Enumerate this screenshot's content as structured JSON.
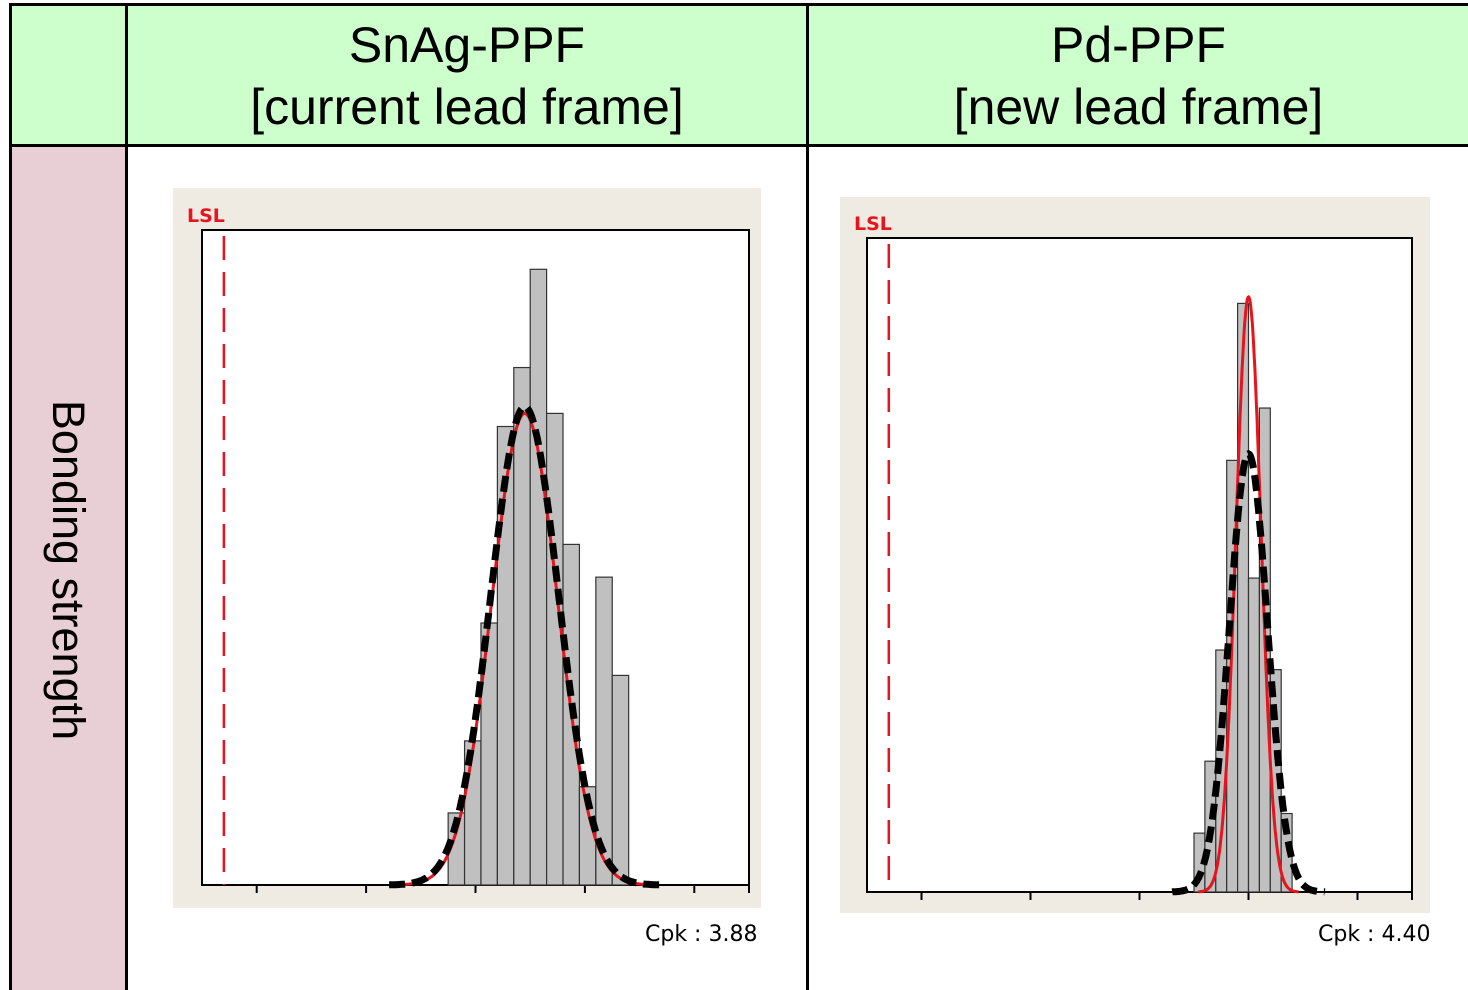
{
  "header": {
    "col1_title_line1": "SnAg-PPF",
    "col1_title_line2": "[current lead frame]",
    "col2_title_line1": "Pd-PPF",
    "col2_title_line2": "[new lead frame]"
  },
  "row_label": "Bonding strength",
  "colors": {
    "header_bg": "#ccffcc",
    "row_header_bg": "#e8cfd6",
    "plot_frame_bg": "#efebe3",
    "bar_fill": "#c0c0c0",
    "lsl_line": "#e8131b",
    "fit_red": "#e8131b",
    "fit_black": "#000000"
  },
  "chart_data": [
    {
      "type": "bar",
      "panel": "SnAg-PPF [current lead frame]",
      "title": "",
      "xlabel": "",
      "ylabel": "",
      "lsl_label": "LSL",
      "lsl_x": 0.04,
      "xlim": [
        0,
        1.0
      ],
      "ylim": [
        0,
        100
      ],
      "bins": [
        {
          "x0": 0.45,
          "x1": 0.48,
          "count": 11
        },
        {
          "x0": 0.48,
          "x1": 0.51,
          "count": 22
        },
        {
          "x0": 0.51,
          "x1": 0.54,
          "count": 40
        },
        {
          "x0": 0.54,
          "x1": 0.57,
          "count": 70
        },
        {
          "x0": 0.57,
          "x1": 0.6,
          "count": 79
        },
        {
          "x0": 0.6,
          "x1": 0.63,
          "count": 94
        },
        {
          "x0": 0.63,
          "x1": 0.66,
          "count": 72
        },
        {
          "x0": 0.66,
          "x1": 0.69,
          "count": 52
        },
        {
          "x0": 0.69,
          "x1": 0.72,
          "count": 15
        },
        {
          "x0": 0.72,
          "x1": 0.75,
          "count": 47
        },
        {
          "x0": 0.75,
          "x1": 0.78,
          "count": 32
        }
      ],
      "fit_curves": [
        {
          "color": "red",
          "style": "solid",
          "mean": 0.59,
          "sd": 0.06,
          "peak": 72
        },
        {
          "color": "black",
          "style": "dashed",
          "mean": 0.59,
          "sd": 0.062,
          "peak": 73
        }
      ],
      "cpk_text": "Cpk : 3.88"
    },
    {
      "type": "bar",
      "panel": "Pd-PPF [new lead frame]",
      "title": "",
      "xlabel": "",
      "ylabel": "",
      "lsl_label": "LSL",
      "lsl_x": 0.04,
      "xlim": [
        0,
        1.0
      ],
      "ylim": [
        0,
        100
      ],
      "bins": [
        {
          "x0": 0.6,
          "x1": 0.62,
          "count": 9
        },
        {
          "x0": 0.62,
          "x1": 0.64,
          "count": 20
        },
        {
          "x0": 0.64,
          "x1": 0.66,
          "count": 37
        },
        {
          "x0": 0.66,
          "x1": 0.68,
          "count": 66
        },
        {
          "x0": 0.68,
          "x1": 0.7,
          "count": 90
        },
        {
          "x0": 0.7,
          "x1": 0.72,
          "count": 48
        },
        {
          "x0": 0.72,
          "x1": 0.74,
          "count": 74
        },
        {
          "x0": 0.74,
          "x1": 0.76,
          "count": 34
        },
        {
          "x0": 0.76,
          "x1": 0.78,
          "count": 12
        }
      ],
      "fit_curves": [
        {
          "color": "red",
          "style": "solid",
          "mean": 0.7,
          "sd": 0.023,
          "peak": 91
        },
        {
          "color": "black",
          "style": "dashed",
          "mean": 0.7,
          "sd": 0.035,
          "peak": 67
        }
      ],
      "cpk_text": "Cpk : 4.40"
    }
  ]
}
